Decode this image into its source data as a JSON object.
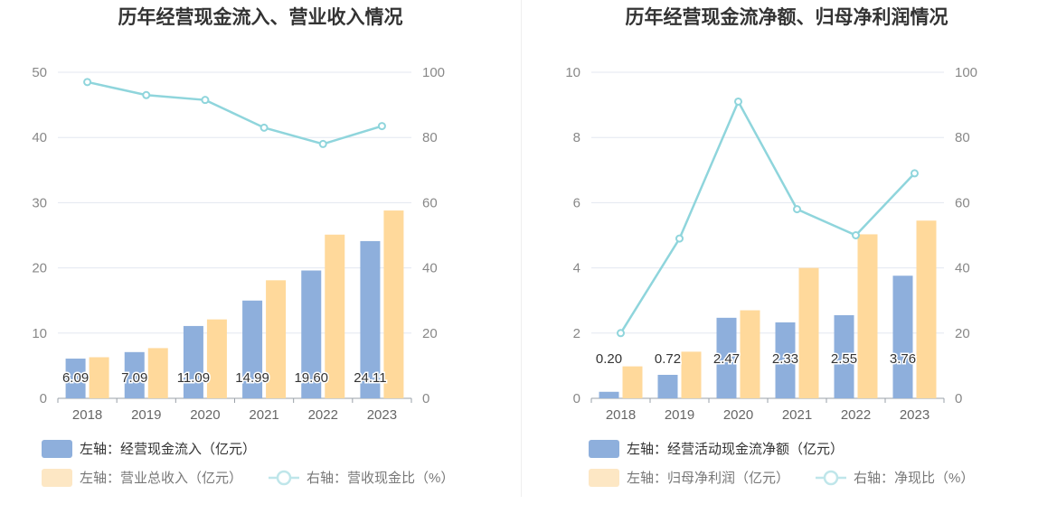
{
  "chart_data": [
    {
      "type": "bar",
      "title": "历年经营现金流入、营业收入情况",
      "categories": [
        "2018",
        "2019",
        "2020",
        "2021",
        "2022",
        "2023"
      ],
      "y_left": {
        "min": 0,
        "max": 50,
        "ticks": [
          "0",
          "10",
          "20",
          "30",
          "40",
          "50"
        ]
      },
      "y_right": {
        "min": 0,
        "max": 100,
        "ticks": [
          "0",
          "20",
          "40",
          "60",
          "80",
          "100"
        ]
      },
      "series": [
        {
          "name": "左轴：经营现金流入（亿元）",
          "type": "bar",
          "axis": "left",
          "color": "#8eafdc",
          "values": [
            6.09,
            7.09,
            11.09,
            14.99,
            19.6,
            24.11
          ],
          "labels": [
            "6.09",
            "7.09",
            "11.09",
            "14.99",
            "19.60",
            "24.11"
          ]
        },
        {
          "name": "左轴：营业总收入（亿元）",
          "type": "bar",
          "axis": "left",
          "color": "#ffd99b",
          "values": [
            6.3,
            7.7,
            12.1,
            18.1,
            25.1,
            28.8
          ]
        },
        {
          "name": "右轴：营收现金比（%）",
          "type": "line",
          "axis": "right",
          "color": "#8fd5dc",
          "values": [
            97.0,
            93.0,
            91.5,
            83.0,
            78.0,
            83.5
          ]
        }
      ]
    },
    {
      "type": "bar",
      "title": "历年经营现金流净额、归母净利润情况",
      "categories": [
        "2018",
        "2019",
        "2020",
        "2021",
        "2022",
        "2023"
      ],
      "y_left": {
        "min": 0,
        "max": 10,
        "ticks": [
          "0",
          "2",
          "4",
          "6",
          "8",
          "10"
        ]
      },
      "y_right": {
        "min": 0,
        "max": 100,
        "ticks": [
          "0",
          "20",
          "40",
          "60",
          "80",
          "100"
        ]
      },
      "series": [
        {
          "name": "左轴：经营活动现金流净额（亿元）",
          "type": "bar",
          "axis": "left",
          "color": "#8eafdc",
          "values": [
            0.2,
            0.72,
            2.47,
            2.33,
            2.55,
            3.76
          ],
          "labels": [
            "0.20",
            "0.72",
            "2.47",
            "2.33",
            "2.55",
            "3.76"
          ]
        },
        {
          "name": "左轴：归母净利润（亿元）",
          "type": "bar",
          "axis": "left",
          "color": "#ffd99b",
          "values": [
            0.98,
            1.43,
            2.7,
            4.0,
            5.03,
            5.45
          ]
        },
        {
          "name": "右轴：净现比（%）",
          "type": "line",
          "axis": "right",
          "color": "#8fd5dc",
          "values": [
            20.0,
            49.0,
            91.0,
            58.0,
            50.0,
            69.0
          ]
        }
      ]
    }
  ]
}
